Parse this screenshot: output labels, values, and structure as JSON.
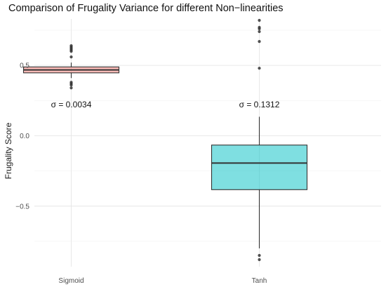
{
  "chart_data": {
    "type": "box",
    "title": "Comparison of Frugality Variance for different Non−linearities",
    "xlabel": "",
    "ylabel": "Frugality Score",
    "ylim": [
      -0.93,
      0.83
    ],
    "yticks": [
      {
        "value": 0.5,
        "label": "0.5"
      },
      {
        "value": 0.0,
        "label": "0.0"
      },
      {
        "value": -0.5,
        "label": "−0.5"
      }
    ],
    "grid": true,
    "legend": "none",
    "categories": [
      "Sigmoid",
      "Tanh"
    ],
    "boxes": [
      {
        "category": "Sigmoid",
        "color": "#F8766D",
        "q1": 0.447,
        "median": 0.468,
        "q3": 0.489,
        "whisker_low": 0.41,
        "whisker_high": 0.52,
        "outliers": [
          0.64,
          0.63,
          0.62,
          0.61,
          0.6,
          0.56,
          0.38,
          0.37,
          0.36,
          0.34
        ],
        "annotation": "σ = 0.0034"
      },
      {
        "category": "Tanh",
        "color": "#00BFC4",
        "q1": -0.383,
        "median": -0.194,
        "q3": -0.066,
        "whisker_low": -0.8,
        "whisker_high": 0.135,
        "outliers": [
          0.82,
          0.77,
          0.76,
          0.74,
          0.67,
          0.48,
          -0.85,
          -0.88
        ],
        "annotation": "σ = 0.1312"
      }
    ]
  }
}
